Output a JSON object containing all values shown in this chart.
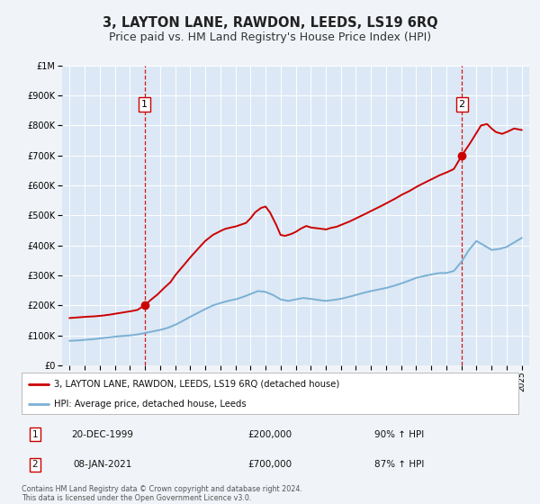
{
  "title": "3, LAYTON LANE, RAWDON, LEEDS, LS19 6RQ",
  "subtitle": "Price paid vs. HM Land Registry's House Price Index (HPI)",
  "title_fontsize": 10.5,
  "subtitle_fontsize": 9,
  "background_color": "#f0f4f8",
  "plot_bg_color": "#dce8f5",
  "line1_color": "#cc0000",
  "line2_color": "#7ab0d4",
  "marker_color": "#cc0000",
  "dashed_line_color": "#cc0000",
  "legend_label1": "3, LAYTON LANE, RAWDON, LEEDS, LS19 6RQ (detached house)",
  "legend_label2": "HPI: Average price, detached house, Leeds",
  "transaction1_date": "20-DEC-1999",
  "transaction1_price": "£200,000",
  "transaction1_hpi": "90% ↑ HPI",
  "transaction1_year": 1999.97,
  "transaction1_value": 200000,
  "transaction2_date": "08-JAN-2021",
  "transaction2_price": "£700,000",
  "transaction2_hpi": "87% ↑ HPI",
  "transaction2_year": 2021.03,
  "transaction2_value": 700000,
  "footer": "Contains HM Land Registry data © Crown copyright and database right 2024.\nThis data is licensed under the Open Government Licence v3.0.",
  "ylim": [
    0,
    1000000
  ],
  "xlim": [
    1994.5,
    2025.5
  ]
}
